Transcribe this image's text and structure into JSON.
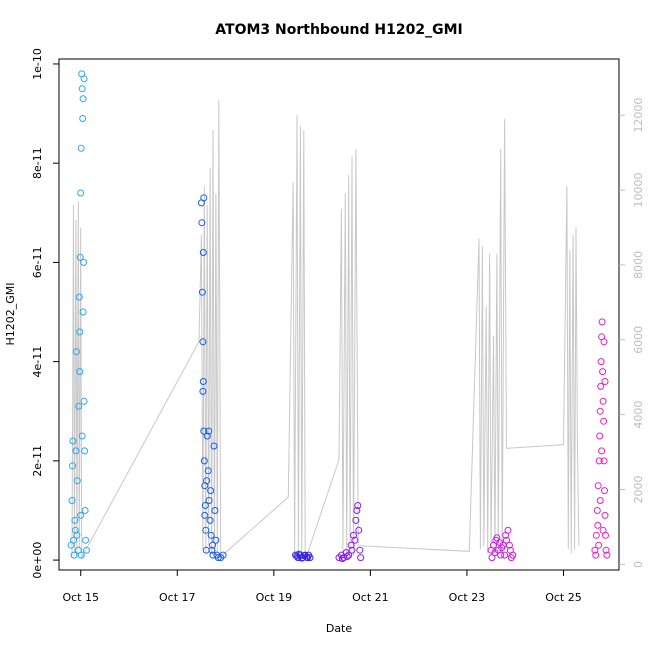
{
  "chart_data": {
    "type": "scatter",
    "title": "ATOM3 Northbound H1202_GMI",
    "xlabel": "Date",
    "ylabel": "H1202_GMI",
    "xlim_days": [
      14.45,
      26.05
    ],
    "ylim": [
      -2e-12,
      1.01e-10
    ],
    "x_ticks": [
      {
        "v": 14.9,
        "label": "Oct 15"
      },
      {
        "v": 16.9,
        "label": "Oct 17"
      },
      {
        "v": 18.9,
        "label": "Oct 19"
      },
      {
        "v": 20.9,
        "label": "Oct 21"
      },
      {
        "v": 22.9,
        "label": "Oct 23"
      },
      {
        "v": 24.9,
        "label": "Oct 25"
      }
    ],
    "y_ticks": [
      {
        "v": 0,
        "label": "0e+00"
      },
      {
        "v": 2e-11,
        "label": "2e-11"
      },
      {
        "v": 4e-11,
        "label": "4e-11"
      },
      {
        "v": 6e-11,
        "label": "6e-11"
      },
      {
        "v": 8e-11,
        "label": "8e-11"
      },
      {
        "v": 1e-10,
        "label": "1e-10"
      }
    ],
    "y2_lim": [
      -150,
      13500
    ],
    "y2_ticks": [
      {
        "v": 0,
        "label": "0"
      },
      {
        "v": 2000,
        "label": "2000"
      },
      {
        "v": 4000,
        "label": "4000"
      },
      {
        "v": 6000,
        "label": "6000"
      },
      {
        "v": 8000,
        "label": "8000"
      },
      {
        "v": 10000,
        "label": "10000"
      },
      {
        "v": 12000,
        "label": "12000"
      }
    ],
    "secondary_series": {
      "color": "#c8c8c8",
      "points": [
        [
          14.72,
          200
        ],
        [
          14.75,
          9600
        ],
        [
          14.77,
          300
        ],
        [
          14.8,
          9200
        ],
        [
          14.82,
          200
        ],
        [
          14.85,
          9700
        ],
        [
          14.87,
          400
        ],
        [
          14.9,
          9000
        ],
        [
          14.92,
          150
        ],
        [
          14.95,
          250
        ],
        [
          17.35,
          5950
        ],
        [
          17.4,
          8800
        ],
        [
          17.43,
          400
        ],
        [
          17.46,
          10100
        ],
        [
          17.49,
          300
        ],
        [
          17.52,
          9600
        ],
        [
          17.55,
          500
        ],
        [
          17.58,
          10600
        ],
        [
          17.61,
          300
        ],
        [
          17.64,
          11600
        ],
        [
          17.67,
          200
        ],
        [
          17.7,
          9900
        ],
        [
          17.73,
          250
        ],
        [
          17.76,
          12400
        ],
        [
          17.8,
          200
        ],
        [
          19.2,
          1800
        ],
        [
          19.3,
          10200
        ],
        [
          19.33,
          300
        ],
        [
          19.38,
          12000
        ],
        [
          19.41,
          200
        ],
        [
          19.45,
          11700
        ],
        [
          19.48,
          250
        ],
        [
          19.52,
          11600
        ],
        [
          19.55,
          200
        ],
        [
          19.6,
          300
        ],
        [
          20.25,
          2800
        ],
        [
          20.3,
          9500
        ],
        [
          20.33,
          300
        ],
        [
          20.38,
          9900
        ],
        [
          20.41,
          250
        ],
        [
          20.45,
          10400
        ],
        [
          20.48,
          300
        ],
        [
          20.52,
          10900
        ],
        [
          20.55,
          250
        ],
        [
          20.6,
          11100
        ],
        [
          20.65,
          500
        ],
        [
          22.95,
          350
        ],
        [
          23.15,
          8700
        ],
        [
          23.18,
          400
        ],
        [
          23.22,
          8500
        ],
        [
          23.25,
          500
        ],
        [
          23.3,
          6900
        ],
        [
          23.33,
          300
        ],
        [
          23.37,
          8300
        ],
        [
          23.4,
          400
        ],
        [
          23.45,
          6100
        ],
        [
          23.48,
          300
        ],
        [
          23.52,
          8300
        ],
        [
          23.55,
          500
        ],
        [
          23.6,
          11100
        ],
        [
          23.63,
          300
        ],
        [
          23.68,
          11900
        ],
        [
          23.72,
          3100
        ],
        [
          24.9,
          3200
        ],
        [
          24.97,
          10100
        ],
        [
          25.0,
          400
        ],
        [
          25.03,
          8400
        ],
        [
          25.06,
          300
        ],
        [
          25.1,
          8800
        ],
        [
          25.13,
          400
        ],
        [
          25.16,
          9000
        ],
        [
          25.19,
          3000
        ],
        [
          25.22,
          500
        ]
      ]
    },
    "series": [
      {
        "color": "#29a8ef",
        "points": [
          [
            14.7,
            0.3
          ],
          [
            14.72,
            1.2
          ],
          [
            14.74,
            2.4
          ],
          [
            14.76,
            0.1
          ],
          [
            14.78,
            0.8
          ],
          [
            14.8,
            2.2
          ],
          [
            14.82,
            0.5
          ],
          [
            14.83,
            1.6
          ],
          [
            14.85,
            0.2
          ],
          [
            14.86,
            3.1
          ],
          [
            14.87,
            5.3
          ],
          [
            14.88,
            4.6
          ],
          [
            14.89,
            6.1
          ],
          [
            14.9,
            7.4
          ],
          [
            14.91,
            8.3
          ],
          [
            14.92,
            9.8
          ],
          [
            14.93,
            9.5
          ],
          [
            14.94,
            8.9
          ],
          [
            14.95,
            5.0
          ],
          [
            14.96,
            6.0
          ],
          [
            14.97,
            3.2
          ],
          [
            14.98,
            2.2
          ],
          [
            14.99,
            1.0
          ],
          [
            15.0,
            0.4
          ],
          [
            15.02,
            0.2
          ],
          [
            14.73,
            1.9
          ],
          [
            14.81,
            4.2
          ],
          [
            14.88,
            3.8
          ],
          [
            14.9,
            0.9
          ],
          [
            14.93,
            2.5
          ],
          [
            14.95,
            9.3
          ],
          [
            14.97,
            9.7
          ],
          [
            14.91,
            0.1
          ],
          [
            14.75,
            0.4
          ],
          [
            14.79,
            0.6
          ]
        ]
      },
      {
        "color": "#1a5cf0",
        "points": [
          [
            17.4,
            7.2
          ],
          [
            17.41,
            6.8
          ],
          [
            17.42,
            5.4
          ],
          [
            17.43,
            4.4
          ],
          [
            17.44,
            3.6
          ],
          [
            17.45,
            2.6
          ],
          [
            17.46,
            2.0
          ],
          [
            17.47,
            1.5
          ],
          [
            17.48,
            1.1
          ],
          [
            17.49,
            0.6
          ],
          [
            17.5,
            0.2
          ],
          [
            17.52,
            2.5
          ],
          [
            17.54,
            1.8
          ],
          [
            17.56,
            1.2
          ],
          [
            17.58,
            0.8
          ],
          [
            17.6,
            0.5
          ],
          [
            17.62,
            0.2
          ],
          [
            17.64,
            0.1
          ],
          [
            17.66,
            2.3
          ],
          [
            17.68,
            1.0
          ],
          [
            17.7,
            0.4
          ],
          [
            17.72,
            0.1
          ],
          [
            17.75,
            0.05
          ],
          [
            17.8,
            0.05
          ],
          [
            17.85,
            0.1
          ],
          [
            17.45,
            7.3
          ],
          [
            17.44,
            6.2
          ],
          [
            17.43,
            3.4
          ],
          [
            17.47,
            0.9
          ],
          [
            17.51,
            1.6
          ],
          [
            17.55,
            2.6
          ],
          [
            17.59,
            1.4
          ],
          [
            17.63,
            0.3
          ]
        ]
      },
      {
        "color": "#3a22e0",
        "points": [
          [
            19.35,
            0.1
          ],
          [
            19.4,
            0.05
          ],
          [
            19.45,
            0.1
          ],
          [
            19.5,
            0.05
          ],
          [
            19.55,
            0.1
          ],
          [
            19.6,
            0.05
          ],
          [
            19.65,
            0.05
          ],
          [
            19.38,
            0.08
          ],
          [
            19.42,
            0.12
          ],
          [
            19.48,
            0.04
          ],
          [
            19.52,
            0.09
          ],
          [
            19.58,
            0.06
          ],
          [
            19.62,
            0.1
          ]
        ]
      },
      {
        "color": "#8a1ee8",
        "points": [
          [
            20.25,
            0.05
          ],
          [
            20.3,
            0.1
          ],
          [
            20.35,
            0.05
          ],
          [
            20.4,
            0.15
          ],
          [
            20.45,
            0.1
          ],
          [
            20.5,
            0.3
          ],
          [
            20.55,
            0.5
          ],
          [
            20.6,
            0.8
          ],
          [
            20.62,
            1.0
          ],
          [
            20.64,
            1.1
          ],
          [
            20.66,
            0.6
          ],
          [
            20.68,
            0.2
          ],
          [
            20.7,
            0.05
          ],
          [
            20.32,
            0.03
          ],
          [
            20.42,
            0.07
          ],
          [
            20.52,
            0.2
          ],
          [
            20.58,
            0.4
          ]
        ]
      },
      {
        "color": "#c81de4",
        "points": [
          [
            23.4,
            0.2
          ],
          [
            23.45,
            0.3
          ],
          [
            23.5,
            0.4
          ],
          [
            23.55,
            0.2
          ],
          [
            23.6,
            0.1
          ],
          [
            23.65,
            0.3
          ],
          [
            23.7,
            0.5
          ],
          [
            23.75,
            0.6
          ],
          [
            23.8,
            0.2
          ],
          [
            23.85,
            0.1
          ],
          [
            23.42,
            0.05
          ],
          [
            23.48,
            0.15
          ],
          [
            23.52,
            0.45
          ],
          [
            23.58,
            0.35
          ],
          [
            23.62,
            0.25
          ],
          [
            23.68,
            0.1
          ],
          [
            23.72,
            0.4
          ],
          [
            23.78,
            0.3
          ],
          [
            23.82,
            0.05
          ]
        ]
      },
      {
        "color": "#ee1ec8",
        "points": [
          [
            25.55,
            0.2
          ],
          [
            25.58,
            0.5
          ],
          [
            25.6,
            1.0
          ],
          [
            25.62,
            1.5
          ],
          [
            25.64,
            2.0
          ],
          [
            25.65,
            2.5
          ],
          [
            25.66,
            3.0
          ],
          [
            25.67,
            3.5
          ],
          [
            25.68,
            4.0
          ],
          [
            25.69,
            4.5
          ],
          [
            25.7,
            4.8
          ],
          [
            25.71,
            3.8
          ],
          [
            25.72,
            3.2
          ],
          [
            25.73,
            2.8
          ],
          [
            25.74,
            2.0
          ],
          [
            25.75,
            1.4
          ],
          [
            25.76,
            0.9
          ],
          [
            25.77,
            0.5
          ],
          [
            25.78,
            0.2
          ],
          [
            25.8,
            0.1
          ],
          [
            25.57,
            0.1
          ],
          [
            25.61,
            0.7
          ],
          [
            25.63,
            0.3
          ],
          [
            25.66,
            1.2
          ],
          [
            25.69,
            2.2
          ],
          [
            25.72,
            0.6
          ],
          [
            25.74,
            4.4
          ],
          [
            25.76,
            3.6
          ]
        ]
      }
    ]
  }
}
